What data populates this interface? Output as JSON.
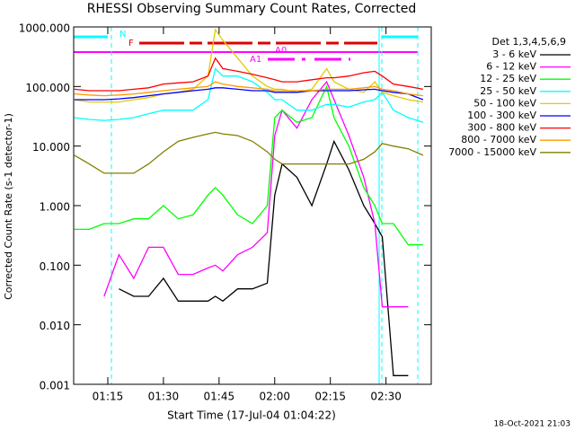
{
  "chart_data": {
    "type": "line",
    "title": "RHESSI Observing Summary Count Rates, Corrected",
    "y_label": "Corrected Count Rate (s-1 detector-1)",
    "x_label": "Start Time (17-Jul-04 01:04:22)",
    "legend_title": "Det 1,3,4,5,6,9",
    "footer": "18-Oct-2021 21:03",
    "annotations": [
      "N",
      "F",
      "A1",
      "A0"
    ],
    "log_y": true,
    "legend": "right",
    "xlim": [
      "01:05:48",
      "02:42:12"
    ],
    "xticks": [
      "01:15",
      "01:30",
      "01:45",
      "02:00",
      "02:15",
      "02:30"
    ],
    "ylim": [
      0.001,
      1000
    ],
    "yticks": [
      {
        "value": 0.001,
        "label": "0.001"
      },
      {
        "value": 0.01,
        "label": "0.010"
      },
      {
        "value": 0.1,
        "label": "0.100"
      },
      {
        "value": 1,
        "label": "1.000"
      },
      {
        "value": 10,
        "label": "10.000"
      },
      {
        "value": 100,
        "label": "100.000"
      },
      {
        "value": 1000,
        "label": "1000.000"
      }
    ],
    "x": [
      "01:06",
      "01:10",
      "01:14",
      "01:18",
      "01:22",
      "01:26",
      "01:30",
      "01:34",
      "01:38",
      "01:42",
      "01:44",
      "01:46",
      "01:50",
      "01:54",
      "01:58",
      "02:00",
      "02:02",
      "02:06",
      "02:10",
      "02:14",
      "02:16",
      "02:20",
      "02:24",
      "02:27",
      "02:29",
      "02:32",
      "02:36",
      "02:40"
    ],
    "series": [
      {
        "name": "3 - 6 keV",
        "color": "#000000",
        "values": [
          null,
          null,
          null,
          0.04,
          0.03,
          0.03,
          0.06,
          0.025,
          0.025,
          0.025,
          0.03,
          0.025,
          0.04,
          0.04,
          0.05,
          1.5,
          5,
          3,
          1,
          5,
          12,
          4,
          1,
          0.5,
          0.3,
          0.0014,
          0.0014,
          null
        ]
      },
      {
        "name": "6 - 12 keV",
        "color": "#ff00ff",
        "values": [
          null,
          null,
          0.03,
          0.15,
          0.06,
          0.2,
          0.2,
          0.07,
          0.07,
          0.09,
          0.1,
          0.08,
          0.15,
          0.2,
          0.35,
          15,
          40,
          20,
          60,
          120,
          60,
          15,
          3,
          0.5,
          0.02,
          0.02,
          0.02,
          null
        ]
      },
      {
        "name": "12 - 25 keV",
        "color": "#00ff00",
        "values": [
          0.4,
          0.4,
          0.5,
          0.5,
          0.6,
          0.6,
          1.0,
          0.6,
          0.7,
          1.5,
          2,
          1.5,
          0.7,
          0.5,
          1,
          30,
          40,
          25,
          30,
          100,
          30,
          10,
          2,
          1,
          0.5,
          0.5,
          0.22,
          0.22
        ]
      },
      {
        "name": "25 - 50 keV",
        "color": "#00ffff",
        "values": [
          30,
          28,
          27,
          28,
          30,
          35,
          40,
          40,
          40,
          60,
          200,
          150,
          150,
          120,
          80,
          60,
          60,
          40,
          40,
          50,
          50,
          45,
          55,
          60,
          80,
          40,
          30,
          25
        ]
      },
      {
        "name": "50 - 100 keV",
        "color": "#e6c800",
        "values": [
          60,
          55,
          55,
          55,
          60,
          65,
          75,
          80,
          90,
          150,
          900,
          600,
          300,
          150,
          100,
          90,
          90,
          80,
          90,
          200,
          120,
          90,
          80,
          120,
          80,
          70,
          60,
          55
        ]
      },
      {
        "name": "100 - 300 keV",
        "color": "#0000ff",
        "values": [
          60,
          60,
          60,
          62,
          65,
          70,
          75,
          80,
          85,
          90,
          95,
          95,
          90,
          85,
          85,
          80,
          80,
          80,
          85,
          85,
          85,
          85,
          88,
          90,
          85,
          80,
          75,
          60
        ]
      },
      {
        "name": "300 - 800 keV",
        "color": "#ff0000",
        "values": [
          90,
          85,
          85,
          85,
          90,
          95,
          110,
          115,
          120,
          150,
          300,
          200,
          180,
          160,
          140,
          130,
          120,
          120,
          130,
          140,
          140,
          150,
          170,
          180,
          150,
          110,
          100,
          90
        ]
      },
      {
        "name": "800 - 7000 keV",
        "color": "#ff9900",
        "values": [
          75,
          72,
          70,
          72,
          75,
          80,
          85,
          90,
          95,
          100,
          120,
          110,
          100,
          95,
          90,
          85,
          85,
          85,
          85,
          90,
          90,
          90,
          95,
          100,
          90,
          85,
          75,
          70
        ]
      },
      {
        "name": "7000 - 15000 keV",
        "color": "#808000",
        "values": [
          7,
          5,
          3.5,
          3.5,
          3.5,
          5,
          8,
          12,
          14,
          16,
          17,
          16,
          15,
          12,
          8,
          6,
          5,
          5,
          5,
          5,
          5,
          5,
          6,
          8,
          11,
          10,
          9,
          7
        ]
      }
    ]
  }
}
